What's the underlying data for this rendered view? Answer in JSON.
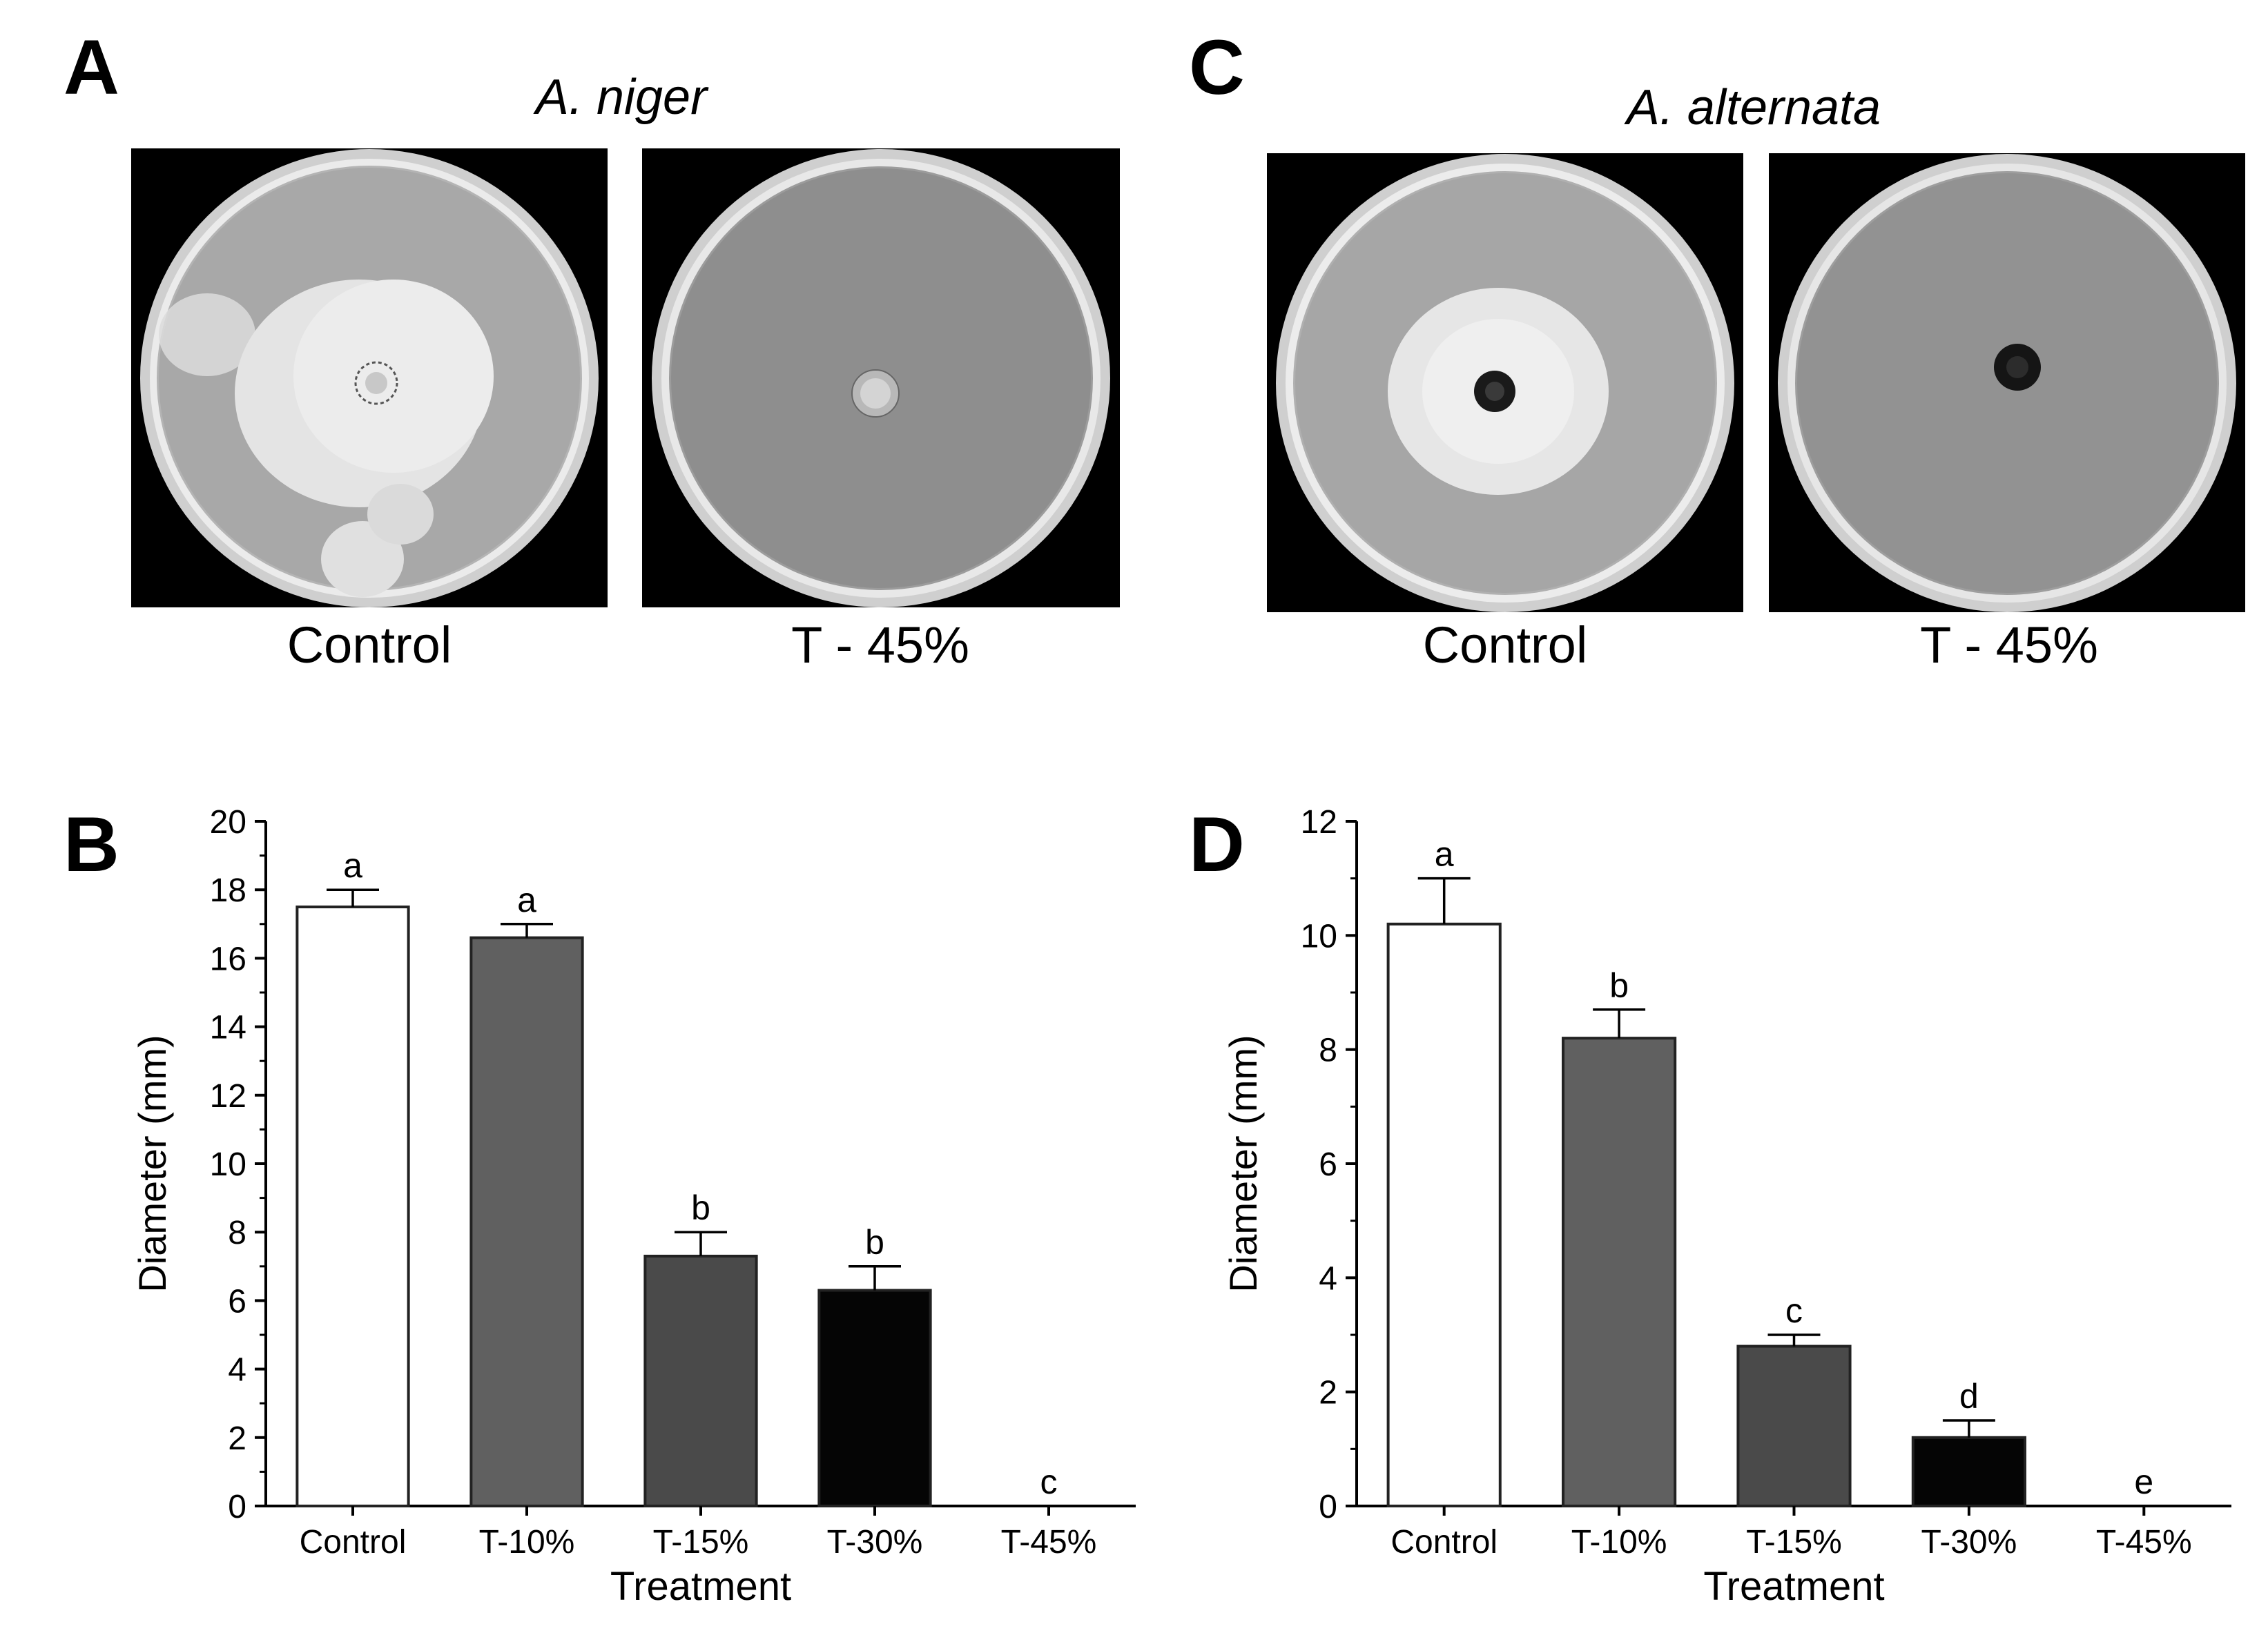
{
  "panels": {
    "A": {
      "letter": "A",
      "species": "A. niger",
      "captions": [
        "Control",
        "T - 45%"
      ]
    },
    "C": {
      "letter": "C",
      "species": "A. alternata",
      "captions": [
        "Control",
        "T - 45%"
      ]
    },
    "B": {
      "letter": "B"
    },
    "D": {
      "letter": "D"
    }
  },
  "colors": {
    "photo_bg": "#000000",
    "dish_rim": "#d8d8d8",
    "agar_light": "#a8a8a8",
    "agar_dark": "#8a8a8a",
    "mycelium": "#e8e8e8",
    "plug_dark": "#1a1a1a",
    "bar_control": "#ffffff",
    "bar_t10": "#606060",
    "bar_t15": "#4a4a4a",
    "bar_t30": "#050505"
  },
  "chart_data": [
    {
      "type": "bar",
      "panel": "B",
      "categories": [
        "Control",
        "T-10%",
        "T-15%",
        "T-30%",
        "T-45%"
      ],
      "values": [
        17.5,
        16.6,
        7.3,
        6.3,
        0
      ],
      "errors": [
        0.5,
        0.4,
        0.7,
        0.7,
        0
      ],
      "letters": [
        "a",
        "a",
        "b",
        "b",
        "c"
      ],
      "xlabel": "Treatment",
      "ylabel": "Diameter (mm)",
      "ylim": [
        0,
        20
      ],
      "yticks": [
        0,
        2,
        4,
        6,
        8,
        10,
        12,
        14,
        16,
        18,
        20
      ],
      "bar_colors": [
        "#ffffff",
        "#606060",
        "#4a4a4a",
        "#050505",
        "#ffffff"
      ],
      "grid": false
    },
    {
      "type": "bar",
      "panel": "D",
      "categories": [
        "Control",
        "T-10%",
        "T-15%",
        "T-30%",
        "T-45%"
      ],
      "values": [
        10.2,
        8.2,
        2.8,
        1.2,
        0
      ],
      "errors": [
        0.8,
        0.5,
        0.2,
        0.3,
        0
      ],
      "letters": [
        "a",
        "b",
        "c",
        "d",
        "e"
      ],
      "xlabel": "Treatment",
      "ylabel": "Diameter (mm)",
      "ylim": [
        0,
        12
      ],
      "yticks": [
        0,
        2,
        4,
        6,
        8,
        10,
        12
      ],
      "bar_colors": [
        "#ffffff",
        "#606060",
        "#4a4a4a",
        "#050505",
        "#ffffff"
      ],
      "grid": false
    }
  ]
}
